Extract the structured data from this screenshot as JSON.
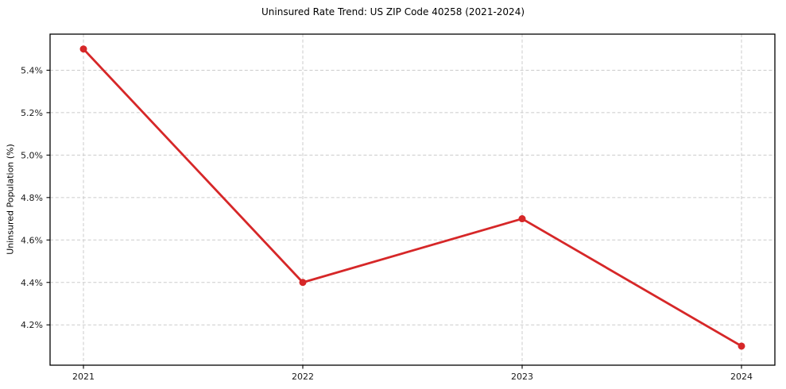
{
  "chart_data": {
    "type": "line",
    "title": "Uninsured Rate Trend: US ZIP Code 40258 (2021-2024)",
    "xlabel": "",
    "ylabel": "Uninsured Population (%)",
    "categories": [
      "2021",
      "2022",
      "2023",
      "2024"
    ],
    "series": [
      {
        "name": "Uninsured rate",
        "values": [
          5.5,
          4.4,
          4.7,
          4.1
        ]
      }
    ],
    "yticks": [
      4.2,
      4.4,
      4.6,
      4.8,
      5.0,
      5.2,
      5.4
    ],
    "ytick_labels": [
      "4.2%",
      "4.4%",
      "4.6%",
      "4.8%",
      "5.0%",
      "5.2%",
      "5.4%"
    ],
    "ylim": [
      4.01,
      5.57
    ],
    "grid": true,
    "legend_position": "none",
    "line_color": "#d62728",
    "marker_color": "#d62728",
    "grid_color": "#cbcbcb",
    "spine_color": "#000000"
  }
}
